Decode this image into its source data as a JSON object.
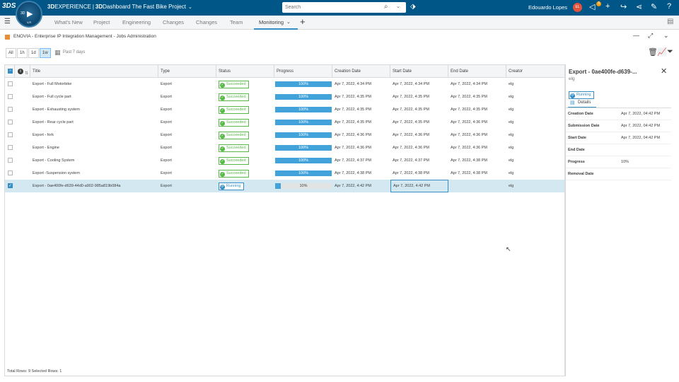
{
  "topbar": {
    "logo": "3DS",
    "compass": {
      "label_3d": "3D",
      "label_vr": "V,R"
    },
    "brand_strong": "3D",
    "brand_rest": "EXPERIENCE",
    "separator": "|",
    "dashboard_strong": "3D",
    "dashboard_rest": "Dashboard",
    "project": "The Fast Bike Project",
    "search_placeholder": "Search",
    "user_name": "Edouardo Lopes",
    "user_initials": "EL",
    "notification_count": "3",
    "icons": [
      "tag-icon",
      "notifications-icon",
      "add-icon",
      "share-icon",
      "network-icon",
      "tools-icon",
      "help-icon"
    ]
  },
  "tabs": {
    "items": [
      "What's New",
      "Project",
      "Engineering",
      "Changes",
      "Changes",
      "Team",
      "Monitoring"
    ],
    "active": "Monitoring"
  },
  "app": {
    "title": "ENOVIA - Enterprise IP Integration Management - Jobs Administration"
  },
  "filters": {
    "buttons": [
      "All",
      "1h",
      "1d",
      "1w"
    ],
    "active": "1w",
    "period": "Past 7 days"
  },
  "table": {
    "columns": [
      "Title",
      "Type",
      "Status",
      "Progress",
      "Creation Date",
      "Start Date",
      "End Date",
      "Creator"
    ],
    "rows": [
      {
        "title": "Export - Full Motorbike",
        "type": "Export",
        "status": "Succeeded",
        "progress_pct": 100,
        "progress_text": "100%",
        "creation": "Apr 7, 2022, 4:34 PM",
        "start": "Apr 7, 2022, 4:34 PM",
        "end": "Apr 7, 2022, 4:34 PM",
        "creator": "elg"
      },
      {
        "title": "Export - Full cycle part",
        "type": "Export",
        "status": "Succeeded",
        "progress_pct": 100,
        "progress_text": "100%",
        "creation": "Apr 7, 2022, 4:35 PM",
        "start": "Apr 7, 2022, 4:35 PM",
        "end": "Apr 7, 2022, 4:35 PM",
        "creator": "elg"
      },
      {
        "title": "Export - Exhausting system",
        "type": "Export",
        "status": "Succeeded",
        "progress_pct": 100,
        "progress_text": "100%",
        "creation": "Apr 7, 2022, 4:35 PM",
        "start": "Apr 7, 2022, 4:35 PM",
        "end": "Apr 7, 2022, 4:35 PM",
        "creator": "elg"
      },
      {
        "title": "Export - Rear cycle part",
        "type": "Export",
        "status": "Succeeded",
        "progress_pct": 100,
        "progress_text": "100%",
        "creation": "Apr 7, 2022, 4:35 PM",
        "start": "Apr 7, 2022, 4:35 PM",
        "end": "Apr 7, 2022, 4:36 PM",
        "creator": "elg"
      },
      {
        "title": "Export - fork",
        "type": "Export",
        "status": "Succeeded",
        "progress_pct": 100,
        "progress_text": "100%",
        "creation": "Apr 7, 2022, 4:36 PM",
        "start": "Apr 7, 2022, 4:36 PM",
        "end": "Apr 7, 2022, 4:36 PM",
        "creator": "elg"
      },
      {
        "title": "Export - Engine",
        "type": "Export",
        "status": "Succeeded",
        "progress_pct": 100,
        "progress_text": "100%",
        "creation": "Apr 7, 2022, 4:36 PM",
        "start": "Apr 7, 2022, 4:36 PM",
        "end": "Apr 7, 2022, 4:36 PM",
        "creator": "elg"
      },
      {
        "title": "Export - Cooling System",
        "type": "Export",
        "status": "Succeeded",
        "progress_pct": 100,
        "progress_text": "100%",
        "creation": "Apr 7, 2022, 4:37 PM",
        "start": "Apr 7, 2022, 4:37 PM",
        "end": "Apr 7, 2022, 4:38 PM",
        "creator": "elg"
      },
      {
        "title": "Export -Suspension system",
        "type": "Export",
        "status": "Succeeded",
        "progress_pct": 100,
        "progress_text": "100%",
        "creation": "Apr 7, 2022, 4:38 PM",
        "start": "Apr 7, 2022, 4:38 PM",
        "end": "Apr 7, 2022, 4:38 PM",
        "creator": "elg"
      },
      {
        "title": "Export - 0ae400fe-d639-44d0-a902-985a819b084a",
        "type": "Export",
        "status": "Running",
        "progress_pct": 10,
        "progress_text": "10%",
        "creation": "Apr 7, 2022, 4:42 PM",
        "start": "Apr 7, 2022, 4:42 PM",
        "end": "",
        "creator": "elg"
      }
    ],
    "selected_row_index": 8,
    "footer": "Total Rows: 9    Selected Rows: 1"
  },
  "panel": {
    "title": "Export - 0ae400fe-d639-...",
    "owner": "elg",
    "status": "Running",
    "tab": "Details",
    "fields": [
      {
        "label": "Creation Date",
        "value": "Apr 7, 2022, 04:42 PM"
      },
      {
        "label": "Submission Date",
        "value": "Apr 7, 2022, 04:42 PM"
      },
      {
        "label": "Start Date",
        "value": "Apr 7, 2022, 04:42 PM"
      },
      {
        "label": "End Date",
        "value": ""
      },
      {
        "label": "Progress",
        "value": "10%"
      },
      {
        "label": "Removal Date",
        "value": ""
      }
    ]
  },
  "colors": {
    "topbar": "#005686",
    "accent": "#368ec4",
    "success": "#57b847",
    "progress": "#42a2da",
    "selected_row": "#d4e8f1"
  }
}
